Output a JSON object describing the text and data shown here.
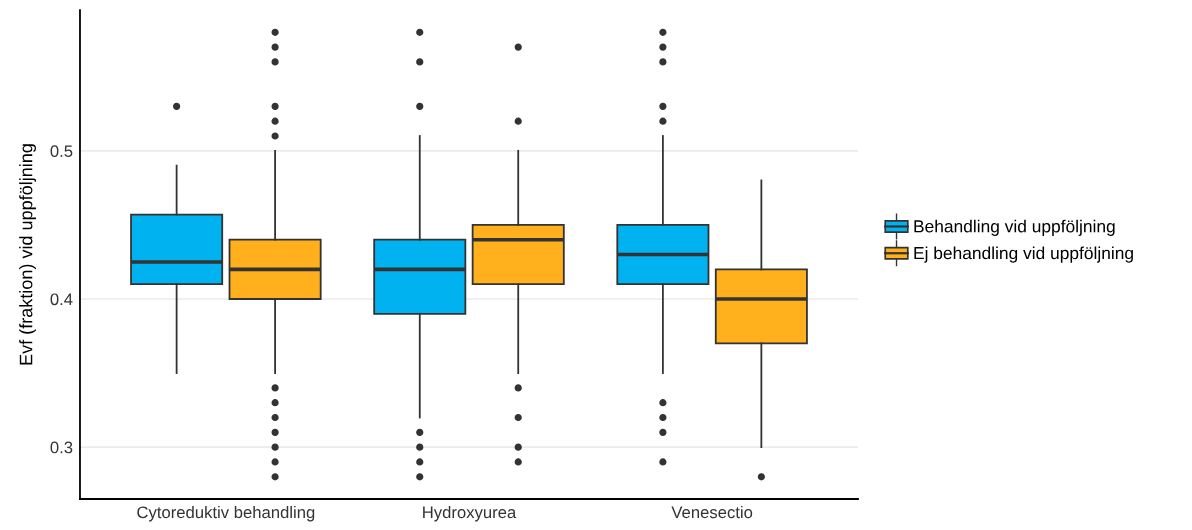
{
  "chart_data": {
    "type": "box",
    "ylabel": "Evf (fraktion) vid uppföljning",
    "categories": [
      "Cytoreduktiv behandling",
      "Hydroxyurea",
      "Venesectio"
    ],
    "series": [
      {
        "name": "Behandling vid uppföljning",
        "color": "#00b2f0",
        "boxes": [
          {
            "low": 0.35,
            "q1": 0.41,
            "median": 0.425,
            "q3": 0.457,
            "high": 0.49,
            "outliers": [
              0.53
            ]
          },
          {
            "low": 0.32,
            "q1": 0.39,
            "median": 0.42,
            "q3": 0.44,
            "high": 0.51,
            "outliers": [
              0.58,
              0.56,
              0.53,
              0.31,
              0.3,
              0.29,
              0.28
            ]
          },
          {
            "low": 0.35,
            "q1": 0.41,
            "median": 0.43,
            "q3": 0.45,
            "high": 0.51,
            "outliers": [
              0.58,
              0.57,
              0.56,
              0.53,
              0.52,
              0.33,
              0.32,
              0.31,
              0.29
            ]
          }
        ]
      },
      {
        "name": "Ej behandling vid uppföljning",
        "color": "#ffb01c",
        "boxes": [
          {
            "low": 0.35,
            "q1": 0.4,
            "median": 0.42,
            "q3": 0.44,
            "high": 0.5,
            "outliers": [
              0.58,
              0.57,
              0.56,
              0.53,
              0.52,
              0.51,
              0.34,
              0.33,
              0.32,
              0.31,
              0.3,
              0.29,
              0.28
            ]
          },
          {
            "low": 0.35,
            "q1": 0.41,
            "median": 0.44,
            "q3": 0.45,
            "high": 0.5,
            "outliers": [
              0.57,
              0.52,
              0.34,
              0.32,
              0.3,
              0.29
            ]
          },
          {
            "low": 0.3,
            "q1": 0.37,
            "median": 0.4,
            "q3": 0.42,
            "high": 0.48,
            "outliers": [
              0.28
            ]
          }
        ]
      }
    ],
    "ylim": [
      0.265,
      0.595
    ],
    "yticks": [
      0.3,
      0.4,
      0.5
    ],
    "grid": "y",
    "legend": "right"
  }
}
